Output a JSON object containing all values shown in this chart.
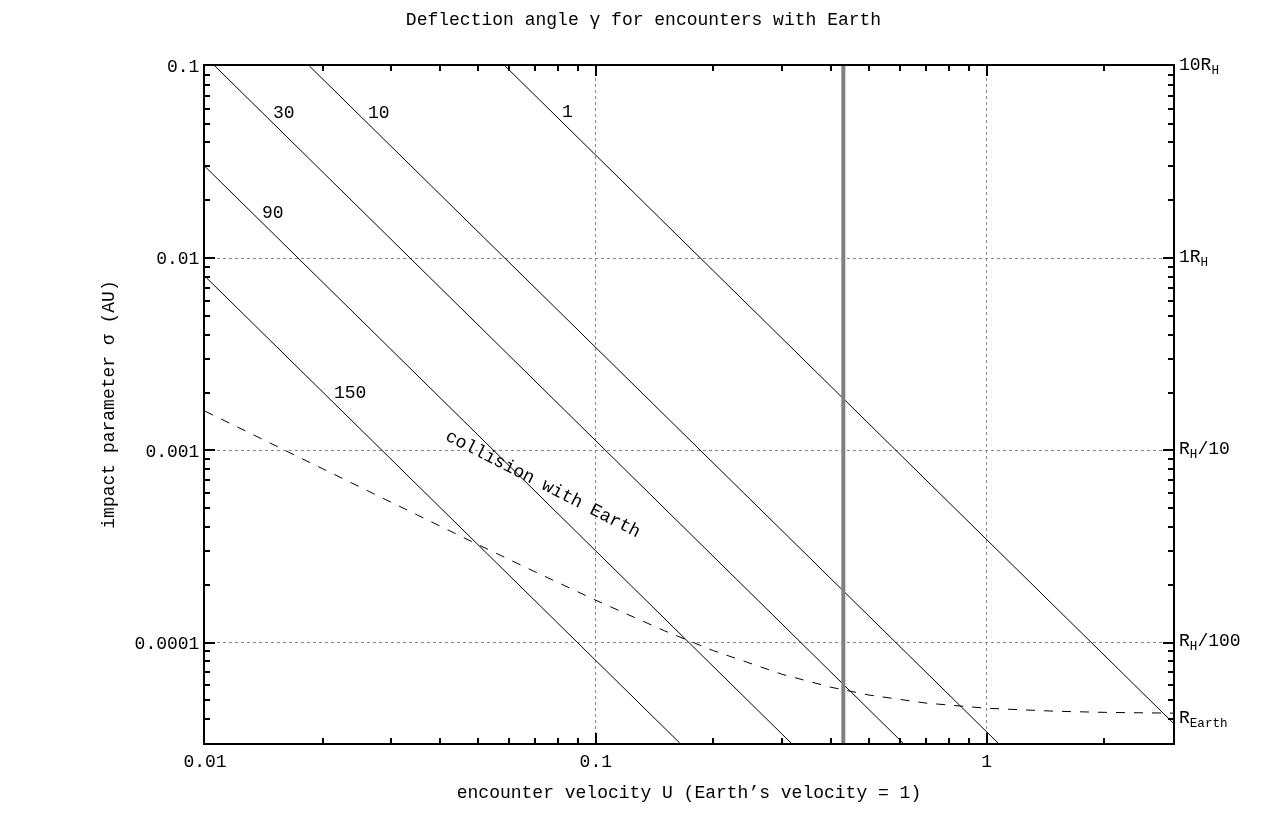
{
  "chart_data": {
    "type": "line",
    "title": "Deflection angle γ for encounters with Earth",
    "xlabel": "encounter velocity U (Earth’s velocity = 1)",
    "ylabel": "impact parameter σ (AU)",
    "log": "xy",
    "grid": true,
    "legend": false,
    "line_style": "solid",
    "xlim": [
      0.01,
      3
    ],
    "xticks": [
      0.01,
      0.1,
      1
    ],
    "ylim": [
      3e-05,
      0.1
    ],
    "yticks": [
      0.1,
      0.01,
      0.001,
      0.0001
    ],
    "series": [
      {
        "name": "1",
        "color": "#000000",
        "x": [
          0.0586,
          3
        ],
        "values": [
          0.1,
          3.82e-05
        ]
      },
      {
        "name": "10",
        "color": "#000000",
        "x": [
          0.0185,
          1.07
        ],
        "values": [
          0.1,
          3e-05
        ]
      },
      {
        "name": "30",
        "color": "#000000",
        "x": [
          0.0106,
          0.611
        ],
        "values": [
          0.1,
          3e-05
        ]
      },
      {
        "name": "90",
        "color": "#000000",
        "x": [
          0.01,
          0.316
        ],
        "values": [
          0.03,
          3e-05
        ]
      },
      {
        "name": "150",
        "color": "#000000",
        "x": [
          0.01,
          0.164
        ],
        "values": [
          0.00804,
          3e-05
        ]
      },
      {
        "color": "#000000",
        "line_style": "dashed",
        "x": [
          0.01,
          0.02,
          0.03,
          0.05,
          0.07,
          0.1,
          0.15,
          0.2,
          0.3,
          0.4,
          0.5,
          0.7,
          1,
          1.5,
          2,
          3
        ],
        "values": [
          0.0016,
          0.000802,
          0.000536,
          0.000323,
          0.000233,
          0.000166,
          0.000115,
          9.07e-05,
          6.83e-05,
          5.85e-05,
          5.33e-05,
          4.84e-05,
          4.55e-05,
          4.39e-05,
          4.33e-05,
          4.29e-05
        ]
      }
    ],
    "ref_lines": [
      {
        "axis": "x",
        "value": 0.43,
        "color": "#808080"
      }
    ],
    "annotations": [
      "collision with Earth",
      "10R$_{H}$",
      "1R$_{H}$",
      "R$_{H}$/10",
      "R$_{H}$/100",
      "R$_{Earth}$"
    ]
  }
}
